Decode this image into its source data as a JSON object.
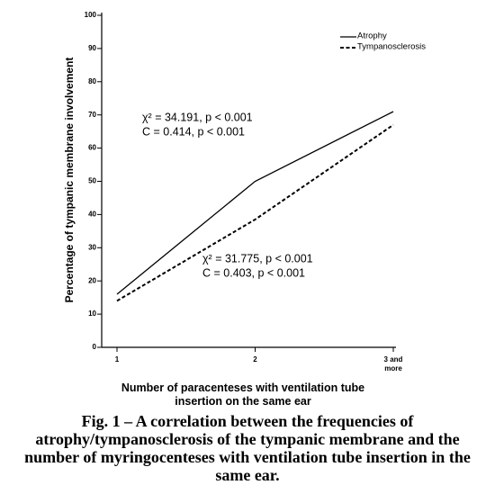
{
  "chart_data": {
    "type": "line",
    "categories": [
      "1",
      "2",
      "3 and more"
    ],
    "series": [
      {
        "name": "Atrophy",
        "color": "#000000",
        "dash": "solid",
        "values": [
          16,
          50,
          71
        ]
      },
      {
        "name": "Tympanosclerosis",
        "color": "#000000",
        "dash": "dashed",
        "values": [
          14,
          38.5,
          67
        ]
      }
    ],
    "ylim": [
      0,
      100
    ],
    "yticks": [
      0,
      10,
      20,
      30,
      40,
      50,
      60,
      70,
      80,
      90,
      100
    ],
    "y_label": "Percentage of tympanic membrane involvement",
    "x_label": "Number of paracenteses with ventilation tube insertion on the same ear",
    "legend": "top-right",
    "annotations": [
      [
        "χ² = 34.191,  p < 0.001",
        "C = 0.414,  p < 0.001"
      ],
      [
        "χ² = 31.775, p < 0.001",
        "C = 0.403, p < 0.001"
      ]
    ],
    "caption": "Fig. 1 – A correlation between the frequencies of atrophy/tympanosclerosis of the tympanic membrane and the number of myringocenteses with ventilation tube insertion in the same ear."
  }
}
